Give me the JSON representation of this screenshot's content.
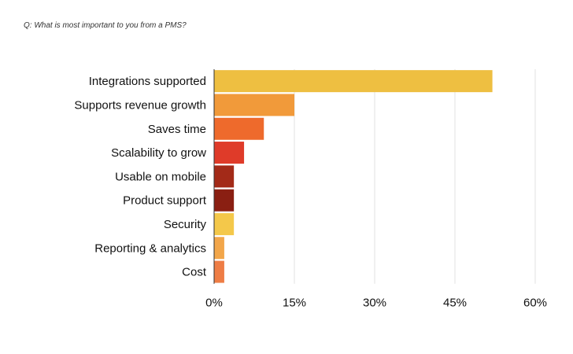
{
  "question": "Q: What is most important to you from a PMS?",
  "chart_data": {
    "type": "bar",
    "orientation": "horizontal",
    "title": "Q: What is most important to you from a PMS?",
    "categories": [
      "Integrations supported",
      "Supports revenue growth",
      "Saves time",
      "Scalability to grow",
      "Usable on mobile",
      "Product support",
      "Security",
      "Reporting & analytics",
      "Cost"
    ],
    "values": [
      52,
      15,
      9.3,
      5.6,
      3.7,
      3.7,
      3.7,
      1.9,
      1.9
    ],
    "colors": [
      "#eebf41",
      "#f19a3a",
      "#ee6a2c",
      "#df3b29",
      "#a32a18",
      "#8a1f12",
      "#f4c84a",
      "#f2a64a",
      "#ee7d45"
    ],
    "xlim": [
      0,
      60
    ],
    "xticks": [
      0,
      15,
      30,
      45,
      60
    ],
    "xtick_labels": [
      "0%",
      "15%",
      "30%",
      "45%",
      "60%"
    ],
    "grid": "vertical",
    "legend": "none"
  }
}
